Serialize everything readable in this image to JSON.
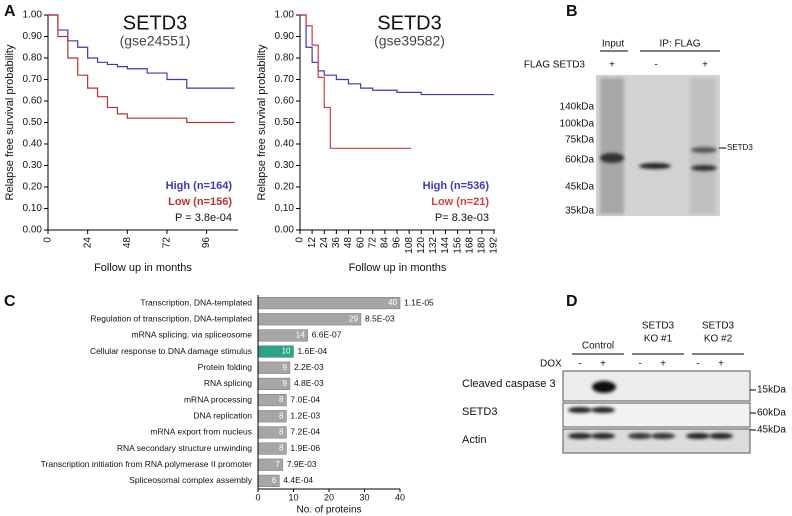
{
  "panel_labels": [
    "A",
    "B",
    "C",
    "D"
  ],
  "chart_data": [
    {
      "type": "km",
      "title": "SETD3",
      "subtitle": "(gse24551)",
      "ylabel": "Relapse free survival probability",
      "xlabel": "Follow up in months",
      "xlim": [
        0,
        115
      ],
      "xticks": [
        0,
        24,
        48,
        72,
        96
      ],
      "ylim": [
        0,
        1
      ],
      "yticks": [
        {
          "value": 0,
          "label": "0.00"
        },
        {
          "value": 0.1,
          "label": "0.10"
        },
        {
          "value": 0.2,
          "label": "0.20"
        },
        {
          "value": 0.3,
          "label": "0.30"
        },
        {
          "value": 0.4,
          "label": "0.40"
        },
        {
          "value": 0.5,
          "label": "0.50"
        },
        {
          "value": 0.6,
          "label": "0.60"
        },
        {
          "value": 0.7,
          "label": "0.70"
        },
        {
          "value": 0.8,
          "label": "0.80"
        },
        {
          "value": 0.9,
          "label": "0.90"
        },
        {
          "value": 1,
          "label": "1.00"
        }
      ],
      "series": [
        {
          "name": "High (n=164)",
          "color": "#3a3ab8",
          "x": [
            0,
            6,
            12,
            18,
            24,
            30,
            36,
            42,
            48,
            60,
            72,
            84,
            96,
            113
          ],
          "values": [
            1,
            0.93,
            0.88,
            0.85,
            0.8,
            0.78,
            0.77,
            0.76,
            0.75,
            0.73,
            0.7,
            0.66,
            0.66,
            0.66
          ]
        },
        {
          "name": "Low (n=156)",
          "color": "#b83232",
          "x": [
            0,
            6,
            12,
            18,
            24,
            30,
            36,
            42,
            48,
            60,
            72,
            84,
            96,
            113
          ],
          "values": [
            1,
            0.9,
            0.8,
            0.72,
            0.66,
            0.62,
            0.57,
            0.54,
            0.52,
            0.52,
            0.52,
            0.5,
            0.5,
            0.5
          ]
        }
      ],
      "annotation": "P = 3.8e-04"
    },
    {
      "type": "km",
      "title": "SETD3",
      "subtitle": "(gse39582)",
      "ylabel": "Relapse free survival probability",
      "xlabel": "Follow up in months",
      "xlim": [
        0,
        193
      ],
      "xticks": [
        0,
        12,
        24,
        36,
        48,
        60,
        72,
        84,
        96,
        108,
        120,
        132,
        144,
        156,
        168,
        180,
        192
      ],
      "ylim": [
        0,
        1
      ],
      "yticks": [
        {
          "value": 0,
          "label": "0.00"
        },
        {
          "value": 0.1,
          "label": "0.10"
        },
        {
          "value": 0.2,
          "label": "0.20"
        },
        {
          "value": 0.3,
          "label": "0.30"
        },
        {
          "value": 0.4,
          "label": "0.40"
        },
        {
          "value": 0.5,
          "label": "0.50"
        },
        {
          "value": 0.6,
          "label": "0.60"
        },
        {
          "value": 0.7,
          "label": "0.70"
        },
        {
          "value": 0.8,
          "label": "0.80"
        },
        {
          "value": 0.9,
          "label": "0.90"
        },
        {
          "value": 1,
          "label": "1.00"
        }
      ],
      "series": [
        {
          "name": "High (n=536)",
          "color": "#3a3ab8",
          "x": [
            0,
            6,
            12,
            18,
            24,
            36,
            48,
            60,
            72,
            96,
            120,
            192
          ],
          "values": [
            1,
            0.85,
            0.78,
            0.74,
            0.72,
            0.7,
            0.68,
            0.66,
            0.65,
            0.64,
            0.63,
            0.63
          ]
        },
        {
          "name": "Low (n=21)",
          "color": "#d04040",
          "x": [
            0,
            6,
            12,
            18,
            24,
            30,
            110
          ],
          "values": [
            1,
            0.95,
            0.86,
            0.71,
            0.57,
            0.38,
            0.38
          ]
        }
      ],
      "annotation": "P= 8.3e-03"
    },
    {
      "type": "hbar",
      "xlabel": "No. of proteins",
      "xlim": [
        0,
        40
      ],
      "xticks": [
        0,
        10,
        20,
        30,
        40
      ],
      "categories": [
        "Transcription, DNA-templated",
        "Regulation of transcription, DNA-templated",
        "mRNA splicing, via spliceosome",
        "Cellular response to DNA damage stimulus",
        "Protein folding",
        "RNA splicing",
        "mRNA processing",
        "DNA replication",
        "mRNA export from nucleus",
        "RNA secondary structure unwinding",
        "Transcription initiation from RNA polymerase II  promoter",
        "Spliceosomal complex assembly"
      ],
      "values": [
        40,
        29,
        14,
        10,
        9,
        9,
        8,
        8,
        8,
        8,
        7,
        6
      ],
      "pvalues": [
        "1.1E-05",
        "8.5E-03",
        "6.6E-07",
        "1.6E-04",
        "2.2E-03",
        "4.8E-03",
        "7.0E-04",
        "1.2E-03",
        "7.2E-04",
        "1.9E-06",
        "7.9E-03",
        "4.4E-04"
      ],
      "colors": [
        "#a6a6a6",
        "#a6a6a6",
        "#a6a6a6",
        "#2aa38a",
        "#a6a6a6",
        "#a6a6a6",
        "#a6a6a6",
        "#a6a6a6",
        "#a6a6a6",
        "#a6a6a6",
        "#a6a6a6",
        "#a6a6a6"
      ]
    }
  ],
  "blot_b": {
    "input": "Input",
    "ip": "IP: FLAG",
    "row": "FLAG SETD3",
    "signs": [
      "+",
      "-",
      "+"
    ],
    "markers": [
      "140kDa",
      "100kDa",
      "75kDa",
      "60kDa",
      "45kDa",
      "35kDa"
    ],
    "band": "SETD3"
  },
  "blot_d": {
    "control": "Control",
    "ko1": [
      "SETD3",
      "KO #1"
    ],
    "ko2": [
      "SETD3",
      "KO #2"
    ],
    "dox": "DOX",
    "signs": [
      "-",
      "+",
      "-",
      "+",
      "-",
      "+"
    ],
    "rows": [
      "Cleaved caspase 3",
      "SETD3",
      "Actin"
    ],
    "sizes": [
      "15kDa",
      "60kDa",
      "45kDa"
    ]
  }
}
